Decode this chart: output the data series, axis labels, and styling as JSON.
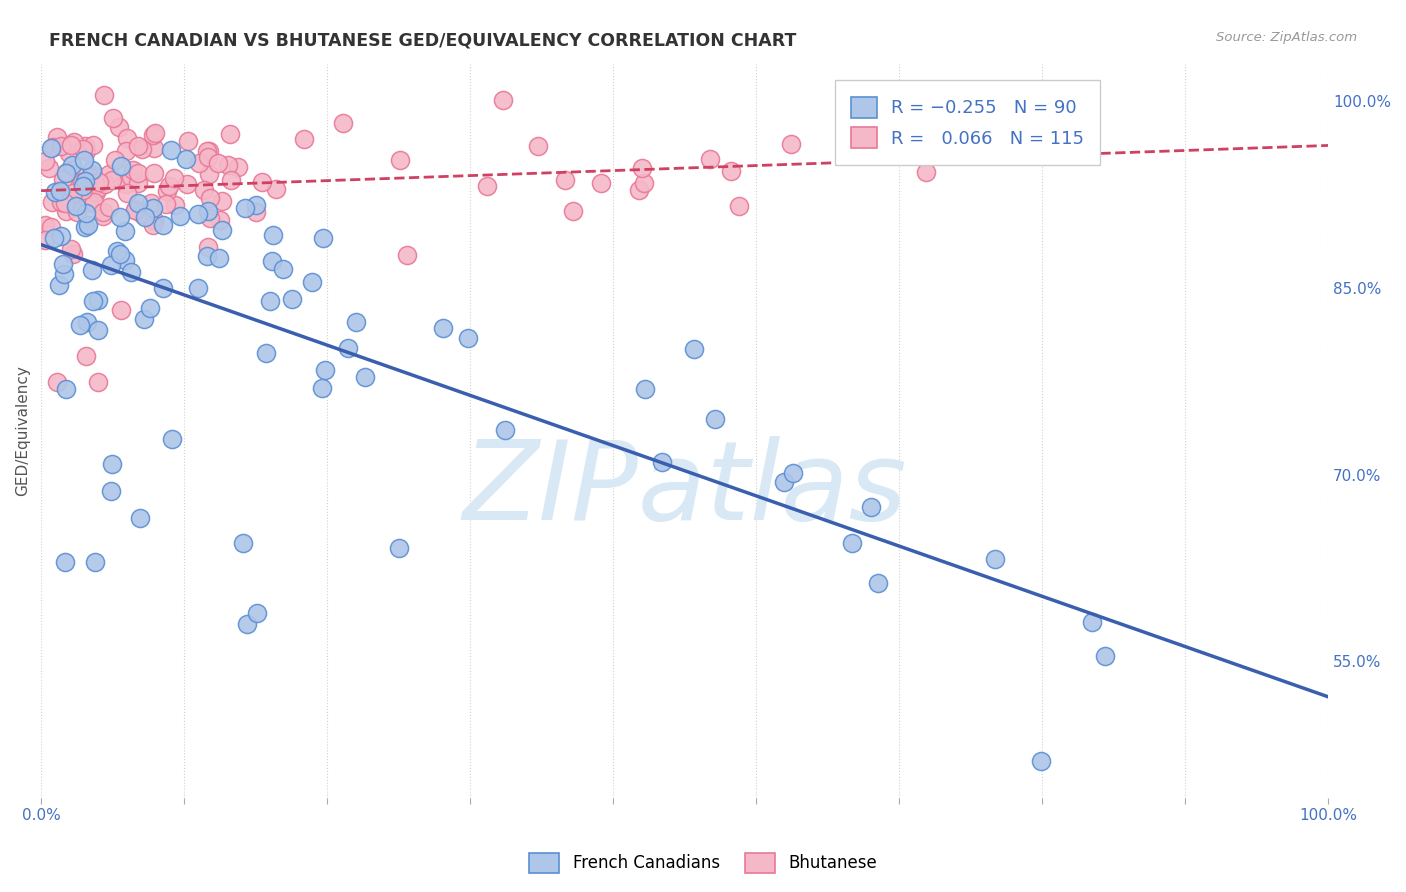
{
  "title": "FRENCH CANADIAN VS BHUTANESE GED/EQUIVALENCY CORRELATION CHART",
  "source": "Source: ZipAtlas.com",
  "ylabel": "GED/Equivalency",
  "right_yticks": [
    "55.0%",
    "70.0%",
    "85.0%",
    "100.0%"
  ],
  "right_ytick_vals": [
    0.55,
    0.7,
    0.85,
    1.0
  ],
  "legend_blue_label": "French Canadians",
  "legend_pink_label": "Bhutanese",
  "blue_fill": "#aec6e8",
  "pink_fill": "#f5b8c8",
  "blue_edge": "#5b8fd4",
  "pink_edge": "#e87898",
  "blue_line_color": "#3a5faf",
  "pink_line_color": "#d04060",
  "xlim": [
    0.0,
    1.0
  ],
  "ylim": [
    0.44,
    1.03
  ],
  "seed": 99
}
